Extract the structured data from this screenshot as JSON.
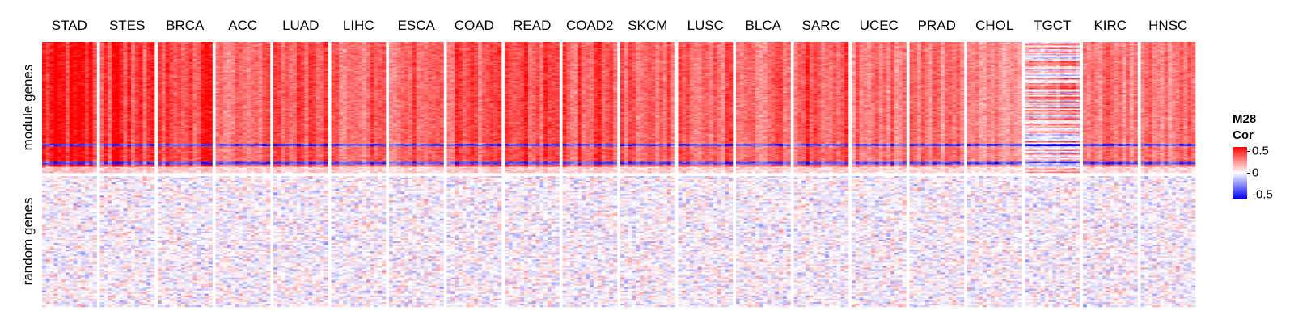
{
  "chart_data": {
    "type": "heatmap",
    "title": "",
    "column_groups": [
      "STAD",
      "STES",
      "BRCA",
      "ACC",
      "LUAD",
      "LIHC",
      "ESCA",
      "COAD",
      "READ",
      "COAD2",
      "SKCM",
      "LUSC",
      "BLCA",
      "SARC",
      "UCEC",
      "PRAD",
      "CHOL",
      "TGCT",
      "KIRC",
      "HNSC"
    ],
    "row_groups": [
      "module genes",
      "random genes"
    ],
    "group_summary": {
      "module genes": {
        "typical_cor": {
          "STAD": 0.42,
          "STES": 0.4,
          "BRCA": 0.38,
          "ACC": 0.28,
          "LUAD": 0.32,
          "LIHC": 0.3,
          "ESCA": 0.33,
          "COAD": 0.34,
          "READ": 0.36,
          "COAD2": 0.34,
          "SKCM": 0.3,
          "LUSC": 0.31,
          "BLCA": 0.3,
          "SARC": 0.34,
          "UCEC": 0.28,
          "PRAD": 0.27,
          "CHOL": 0.22,
          "TGCT": 0.1,
          "KIRC": 0.26,
          "HNSC": 0.27
        },
        "note_bands": "a few genes near the bottom of the block are negatively correlated (~-0.3 to -0.5) across all cohorts"
      },
      "random genes": {
        "typical_cor": {
          "STAD": 0.0,
          "STES": 0.0,
          "BRCA": 0.0,
          "ACC": 0.0,
          "LUAD": 0.0,
          "LIHC": 0.0,
          "ESCA": 0.0,
          "COAD": 0.0,
          "READ": 0.0,
          "COAD2": 0.0,
          "SKCM": 0.0,
          "LUSC": 0.0,
          "BLCA": 0.0,
          "SARC": 0.0,
          "UCEC": 0.0,
          "PRAD": 0.0,
          "CHOL": 0.0,
          "TGCT": 0.0,
          "KIRC": 0.0,
          "HNSC": 0.0
        },
        "spread": 0.25
      }
    },
    "legend": {
      "title_line1": "M28",
      "title_line2": "Cor",
      "ticks": [
        "0.5",
        "0",
        "-0.5"
      ],
      "values": [
        0.5,
        0,
        -0.5
      ],
      "range": [
        -0.5,
        0.5
      ],
      "placement": "right",
      "colors": {
        "high": "#ff0000",
        "mid": "#ffffff",
        "low": "#0000ff"
      }
    }
  }
}
